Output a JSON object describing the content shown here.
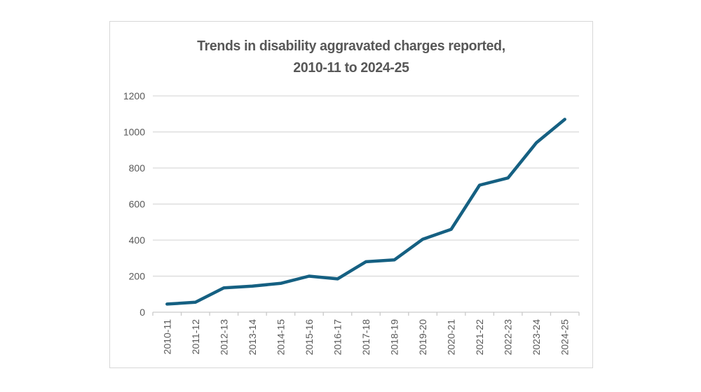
{
  "chart_data": {
    "type": "line",
    "title": "Trends in disability aggravated charges reported, 2010-11 to 2024-25",
    "title_lines": [
      "Trends in disability aggravated charges reported,",
      "2010-11 to 2024-25"
    ],
    "categories": [
      "2010-11",
      "2011-12",
      "2012-13",
      "2013-14",
      "2014-15",
      "2015-16",
      "2016-17",
      "2017-18",
      "2018-19",
      "2019-20",
      "2020-21",
      "2021-22",
      "2022-23",
      "2023-24",
      "2024-25"
    ],
    "values": [
      45,
      55,
      135,
      145,
      160,
      200,
      185,
      280,
      290,
      405,
      460,
      705,
      745,
      940,
      1070
    ],
    "xlabel": "",
    "ylabel": "",
    "ylim": [
      0,
      1200
    ],
    "yticks": [
      0,
      200,
      400,
      600,
      800,
      1000,
      1200
    ],
    "grid": "horizontal",
    "legend": "none"
  },
  "colors": {
    "line": "#156082",
    "gridline": "#d9d9d9",
    "axis": "#c9c9c9",
    "tick": "#c9c9c9",
    "axis_label": "#595959",
    "title": "#575757",
    "card_border": "#d7d7d7",
    "background": "#ffffff"
  }
}
